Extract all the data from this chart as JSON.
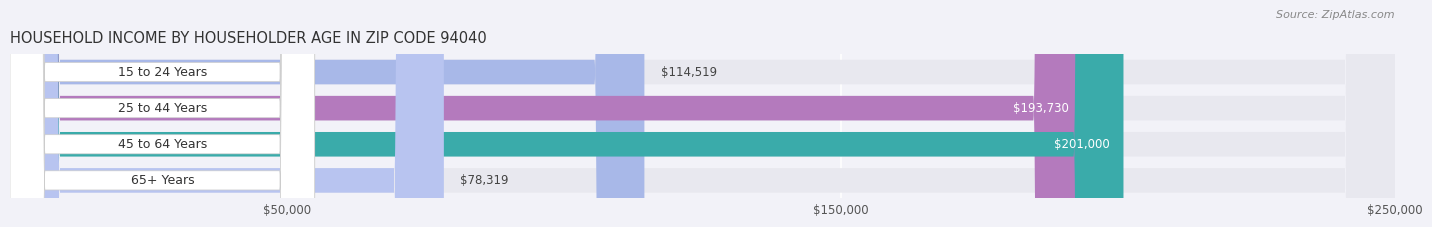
{
  "title": "HOUSEHOLD INCOME BY HOUSEHOLDER AGE IN ZIP CODE 94040",
  "source": "Source: ZipAtlas.com",
  "categories": [
    "15 to 24 Years",
    "25 to 44 Years",
    "45 to 64 Years",
    "65+ Years"
  ],
  "values": [
    114519,
    193730,
    201000,
    78319
  ],
  "bar_colors": [
    "#a8b8e8",
    "#b47abd",
    "#3aabaa",
    "#b8c4f0"
  ],
  "bar_labels": [
    "$114,519",
    "$193,730",
    "$201,000",
    "$78,319"
  ],
  "label_colors": [
    "#444444",
    "#ffffff",
    "#ffffff",
    "#444444"
  ],
  "xlim": [
    0,
    250000
  ],
  "xticks": [
    50000,
    150000,
    250000
  ],
  "xticklabels": [
    "$50,000",
    "$150,000",
    "$250,000"
  ],
  "bg_color": "#f2f2f8",
  "bar_bg_color": "#e8e8ef",
  "title_fontsize": 10.5,
  "source_fontsize": 8,
  "bar_height": 0.68,
  "figsize": [
    14.06,
    2.33
  ]
}
